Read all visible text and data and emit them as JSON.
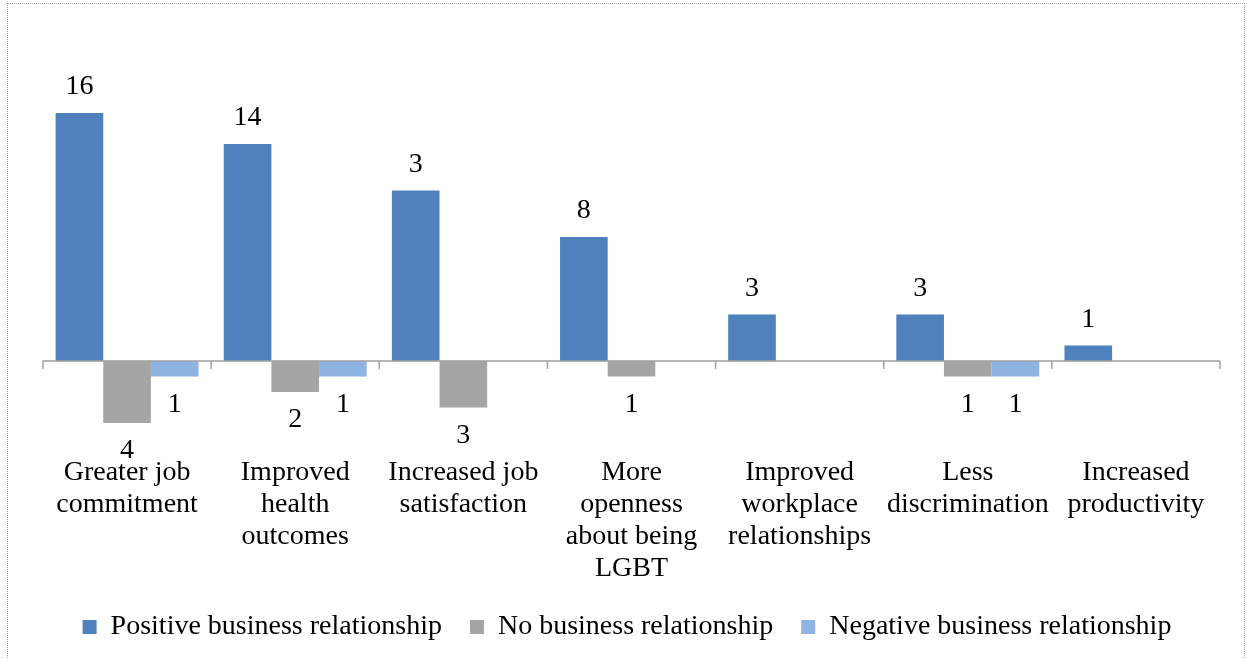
{
  "chart_data": {
    "type": "bar",
    "categories": [
      "Greater job commitment",
      "Improved health outcomes",
      "Increased job satisfaction",
      "More openness about being LGBT",
      "Improved workplace relationships",
      "Less discrimination",
      "Increased productivity"
    ],
    "series": [
      {
        "name": "Positive business relationship",
        "color": "#4f81bd",
        "values": [
          16,
          14,
          11,
          8,
          3,
          3,
          1
        ],
        "value_labels": [
          "16",
          "14",
          null,
          "8",
          "3",
          "3",
          "1"
        ]
      },
      {
        "name": "No business relationship",
        "color": "#a5a5a5",
        "values": [
          -4,
          -2,
          -3,
          -1,
          null,
          -1,
          null
        ]
      },
      {
        "name": "Negative business relationship",
        "color": "#8eb4e3",
        "values": [
          -1,
          -1,
          null,
          null,
          null,
          -1,
          null
        ]
      }
    ],
    "annotations": [
      "3",
      {
        "text": "4",
        "x": "Greater job commitment",
        "y": -4
      },
      "1",
      {
        "text": "2",
        "x": "Improved health outcomes",
        "y": -2
      },
      "1",
      {
        "text": "3",
        "x": "Increased job satisfaction",
        "y": -3
      },
      {
        "text": "1",
        "x": "More openness about being LGBT",
        "y": -1
      },
      {
        "text": "1",
        "x": "Less discrimination",
        "y": -1
      },
      {
        "text": "1",
        "x": "Less discrimination",
        "y": -1
      }
    ],
    "legend": "bottom",
    "tick_labels": "x"
  }
}
